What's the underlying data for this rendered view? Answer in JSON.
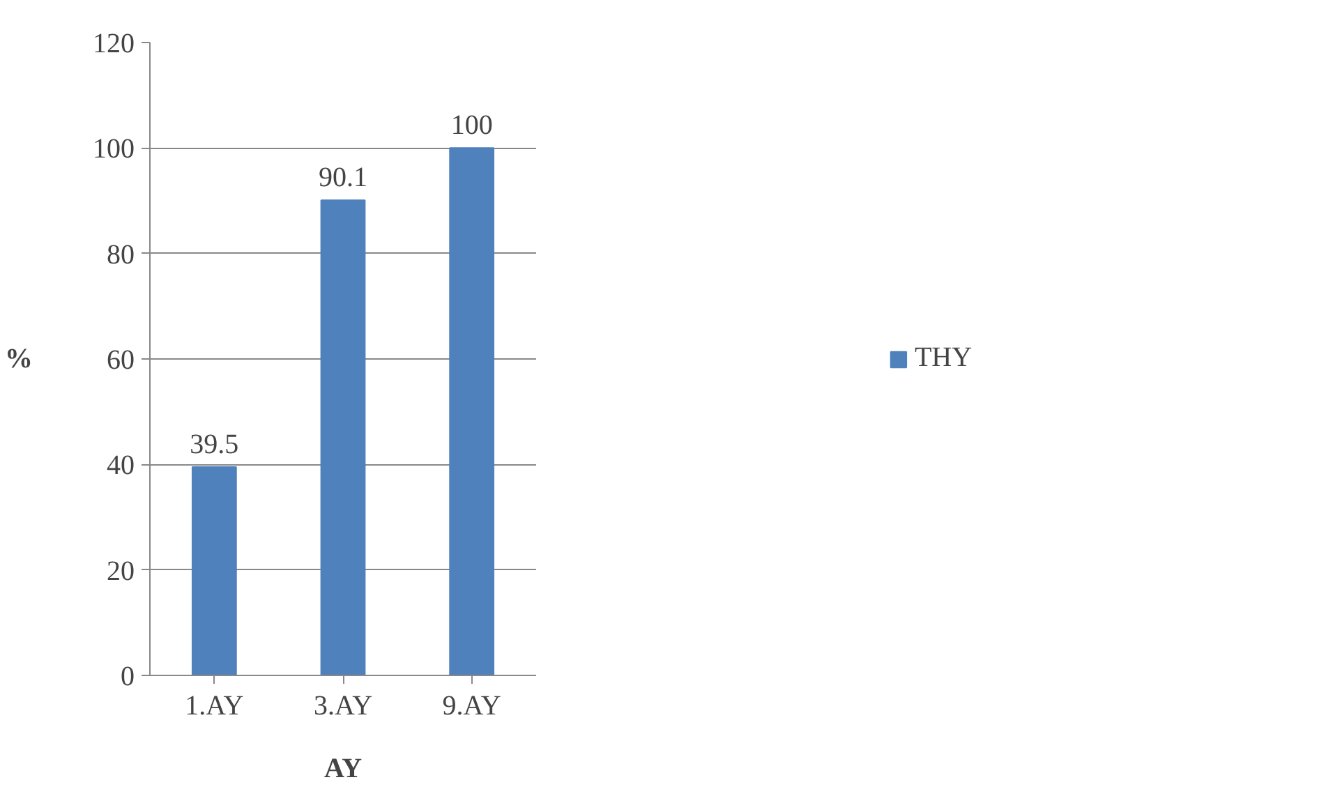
{
  "chart_data": {
    "type": "bar",
    "xlabel": "AY",
    "ylabel": "%",
    "categories": [
      "1.AY",
      "3.AY",
      "9.AY"
    ],
    "series": [
      {
        "name": "THY",
        "color": "#4f81bd",
        "values": [
          39.5,
          90.1,
          100
        ]
      }
    ],
    "ylim": [
      0,
      120
    ],
    "yticks": [
      0,
      20,
      40,
      60,
      80,
      100,
      120
    ],
    "grid": "y",
    "legend": "right",
    "data_labels": true
  }
}
